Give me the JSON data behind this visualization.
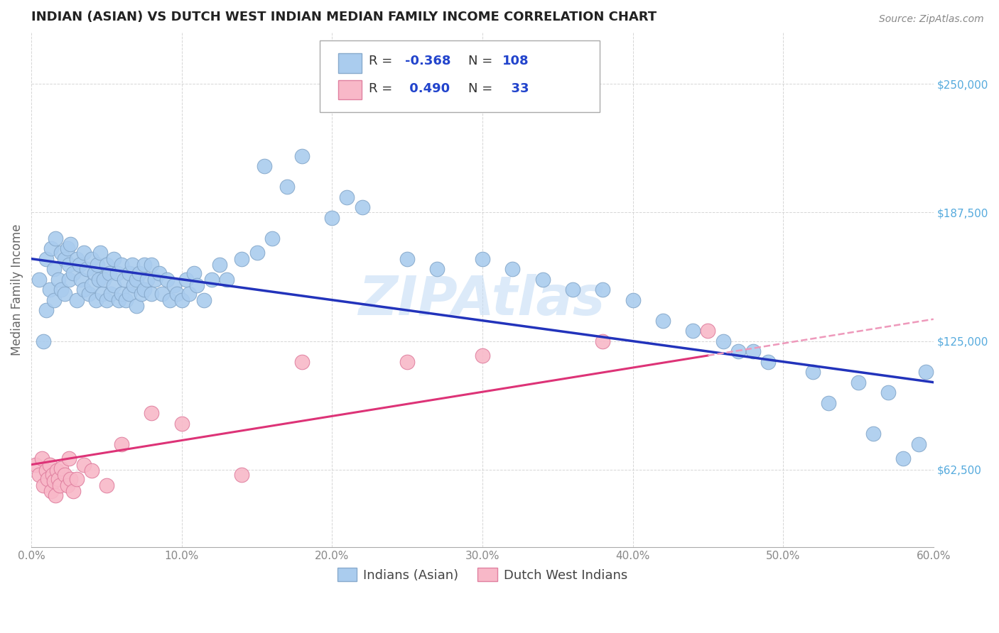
{
  "title": "INDIAN (ASIAN) VS DUTCH WEST INDIAN MEDIAN FAMILY INCOME CORRELATION CHART",
  "source": "Source: ZipAtlas.com",
  "ylabel": "Median Family Income",
  "xlim": [
    0.0,
    0.6
  ],
  "ylim": [
    25000,
    275000
  ],
  "xtick_values": [
    0.0,
    0.1,
    0.2,
    0.3,
    0.4,
    0.5,
    0.6
  ],
  "ytick_values": [
    62500,
    125000,
    187500,
    250000
  ],
  "bg_color": "#ffffff",
  "grid_color": "#cccccc",
  "blue_color": "#aaccee",
  "blue_edge_color": "#88aacc",
  "pink_color": "#f8b8c8",
  "pink_edge_color": "#e080a0",
  "trend_blue": "#2233bb",
  "trend_pink_solid": "#dd3377",
  "trend_pink_dashed": "#ee99bb",
  "ytick_color": "#55aadd",
  "xtick_color": "#888888",
  "legend_text_color": "#333333",
  "legend_val_color": "#2244cc",
  "R1": -0.368,
  "N1": 108,
  "R2": 0.49,
  "N2": 33,
  "watermark": "ZIPAtlas",
  "blue_scatter_x": [
    0.005,
    0.008,
    0.01,
    0.01,
    0.012,
    0.013,
    0.015,
    0.015,
    0.016,
    0.018,
    0.02,
    0.02,
    0.022,
    0.022,
    0.024,
    0.025,
    0.025,
    0.026,
    0.028,
    0.03,
    0.03,
    0.032,
    0.033,
    0.035,
    0.035,
    0.037,
    0.038,
    0.04,
    0.04,
    0.042,
    0.043,
    0.044,
    0.045,
    0.046,
    0.047,
    0.048,
    0.05,
    0.05,
    0.052,
    0.053,
    0.055,
    0.055,
    0.057,
    0.058,
    0.06,
    0.06,
    0.062,
    0.063,
    0.065,
    0.065,
    0.067,
    0.068,
    0.07,
    0.07,
    0.072,
    0.073,
    0.075,
    0.075,
    0.077,
    0.08,
    0.08,
    0.082,
    0.085,
    0.087,
    0.09,
    0.092,
    0.095,
    0.097,
    0.1,
    0.103,
    0.105,
    0.108,
    0.11,
    0.115,
    0.12,
    0.125,
    0.13,
    0.14,
    0.15,
    0.155,
    0.16,
    0.17,
    0.18,
    0.2,
    0.21,
    0.22,
    0.25,
    0.27,
    0.3,
    0.32,
    0.34,
    0.36,
    0.38,
    0.4,
    0.42,
    0.44,
    0.47,
    0.49,
    0.52,
    0.53,
    0.55,
    0.56,
    0.57,
    0.58,
    0.59,
    0.595,
    0.46,
    0.48
  ],
  "blue_scatter_y": [
    155000,
    125000,
    140000,
    165000,
    150000,
    170000,
    160000,
    145000,
    175000,
    155000,
    168000,
    150000,
    165000,
    148000,
    170000,
    162000,
    155000,
    172000,
    158000,
    165000,
    145000,
    162000,
    155000,
    168000,
    150000,
    160000,
    148000,
    165000,
    152000,
    158000,
    145000,
    162000,
    155000,
    168000,
    148000,
    155000,
    162000,
    145000,
    158000,
    148000,
    165000,
    152000,
    158000,
    145000,
    162000,
    148000,
    155000,
    145000,
    158000,
    148000,
    162000,
    152000,
    155000,
    142000,
    158000,
    148000,
    162000,
    150000,
    155000,
    162000,
    148000,
    155000,
    158000,
    148000,
    155000,
    145000,
    152000,
    148000,
    145000,
    155000,
    148000,
    158000,
    152000,
    145000,
    155000,
    162000,
    155000,
    165000,
    168000,
    210000,
    175000,
    200000,
    215000,
    185000,
    195000,
    190000,
    165000,
    160000,
    165000,
    160000,
    155000,
    150000,
    150000,
    145000,
    135000,
    130000,
    120000,
    115000,
    110000,
    95000,
    105000,
    80000,
    100000,
    68000,
    75000,
    110000,
    125000,
    120000
  ],
  "pink_scatter_x": [
    0.003,
    0.005,
    0.007,
    0.008,
    0.01,
    0.011,
    0.012,
    0.013,
    0.014,
    0.015,
    0.016,
    0.017,
    0.018,
    0.019,
    0.02,
    0.022,
    0.024,
    0.025,
    0.026,
    0.028,
    0.03,
    0.035,
    0.04,
    0.05,
    0.06,
    0.08,
    0.1,
    0.14,
    0.18,
    0.25,
    0.3,
    0.38,
    0.45
  ],
  "pink_scatter_y": [
    65000,
    60000,
    68000,
    55000,
    62000,
    58000,
    65000,
    52000,
    60000,
    57000,
    50000,
    62000,
    58000,
    55000,
    63000,
    60000,
    55000,
    68000,
    58000,
    52000,
    58000,
    65000,
    62000,
    55000,
    75000,
    90000,
    85000,
    60000,
    115000,
    115000,
    118000,
    125000,
    130000
  ]
}
